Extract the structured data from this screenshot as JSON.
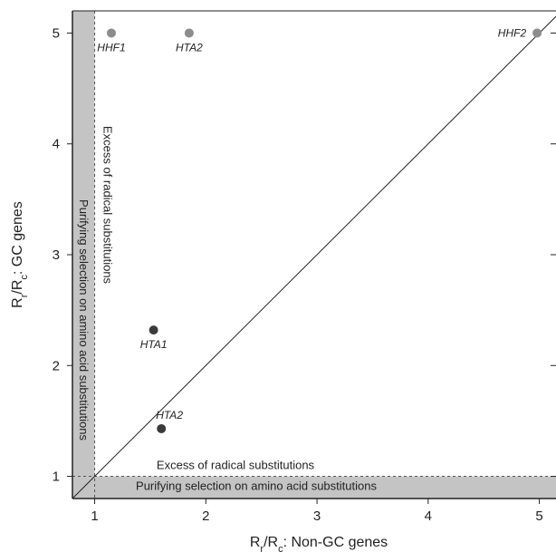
{
  "chart_data": {
    "type": "scatter",
    "title": "",
    "xlabel": {
      "prefix": "R",
      "sub1": "r",
      "mid": "/R",
      "sub2": "c",
      "suffix": ": Non-GC genes"
    },
    "ylabel": {
      "prefix": "R",
      "sub1": "r",
      "mid": "/R",
      "sub2": "c",
      "suffix": ": GC genes"
    },
    "xlim": [
      0.8,
      5.15
    ],
    "ylim": [
      0.8,
      5.2
    ],
    "xticks": [
      1,
      2,
      3,
      4,
      5
    ],
    "yticks": [
      1,
      2,
      3,
      4,
      5
    ],
    "grid": false,
    "diagonal_line": true,
    "colors": {
      "dark": "#3a3a3a",
      "light": "#8c8c8c",
      "shade": "#c4c4c4"
    },
    "points": [
      {
        "label": "HHF1",
        "x": 1.15,
        "y": 5.0,
        "color": "light"
      },
      {
        "label": "HTA2",
        "x": 1.85,
        "y": 5.0,
        "color": "light"
      },
      {
        "label": "HHF2",
        "x": 4.98,
        "y": 5.0,
        "color": "light"
      },
      {
        "label": "HTA1",
        "x": 1.53,
        "y": 2.32,
        "color": "dark"
      },
      {
        "label": "HTA2",
        "x": 1.6,
        "y": 1.43,
        "color": "dark"
      }
    ],
    "regions": {
      "vertical_purifying": "Purifying selection on amino acid substitutions",
      "vertical_excess": "Excess of radical substitutions",
      "horizontal_excess": "Excess of radical substitutions",
      "horizontal_purifying": "Purifying selection on amino acid substitutions"
    }
  }
}
